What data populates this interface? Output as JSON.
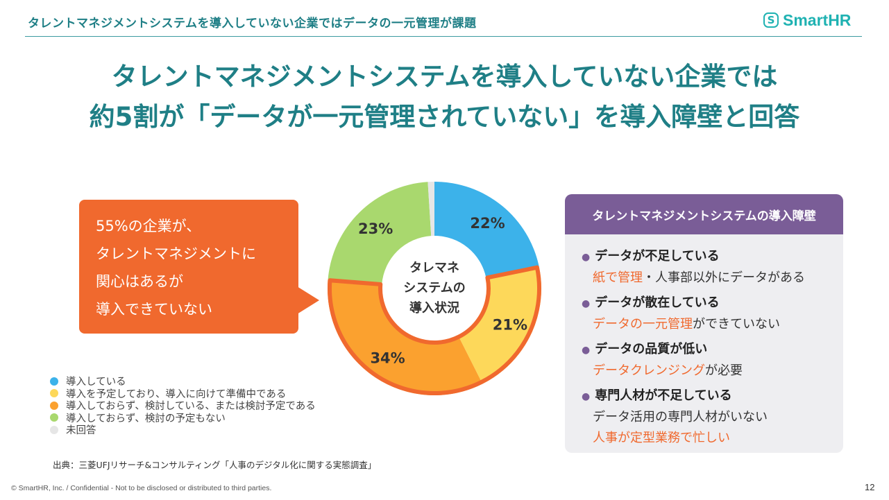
{
  "header": {
    "title": "タレントマネジメントシステムを導入していない企業ではデータの一元管理が課題",
    "logo_mark": "S",
    "logo_text": "SmartHR"
  },
  "main_title": {
    "line1": "タレントマネジメントシステムを導入していない企業では",
    "line2": "約5割が「データが一元管理されていない」を導入障壁と回答"
  },
  "callout": {
    "lines": [
      "55%の企業が、",
      "タレントマネジメントに",
      "関心はあるが",
      "導入できていない"
    ]
  },
  "chart_data": {
    "type": "pie",
    "variant": "donut",
    "center_label": [
      "タレマネ",
      "システムの",
      "導入状況"
    ],
    "slices": [
      {
        "label": "導入している",
        "value": 22,
        "display": "22%",
        "color": "#3cb2ea"
      },
      {
        "label": "導入を予定しており、導入に向けて準備中である",
        "value": 21,
        "display": "21%",
        "color": "#fdd85a"
      },
      {
        "label": "導入しておらず、検討している、または検討予定である",
        "value": 34,
        "display": "34%",
        "color": "#fba12f"
      },
      {
        "label": "導入しておらず、検討の予定もない",
        "value": 23,
        "display": "23%",
        "color": "#a9d86e"
      },
      {
        "label": "未回答",
        "value": 1,
        "display": "",
        "color": "#e6e6e6"
      }
    ],
    "highlight": {
      "slices": [
        1,
        2
      ],
      "color": "#f0692e"
    },
    "legend_position": "bottom-left"
  },
  "source": "出典：三菱UFJリサーチ&コンサルティング「人事のデジタル化に関する実態調査」",
  "panel": {
    "title": "タレントマネジメントシステムの導入障壁",
    "items": [
      {
        "title": "データが不足している",
        "detail": [
          {
            "text": "紙で管理",
            "highlight": true
          },
          {
            "text": "・人事部以外にデータがある",
            "highlight": false
          }
        ]
      },
      {
        "title": "データが散在している",
        "detail": [
          {
            "text": "データの一元管理",
            "highlight": true
          },
          {
            "text": "ができていない",
            "highlight": false
          }
        ]
      },
      {
        "title": "データの品質が低い",
        "detail": [
          {
            "text": "データクレンジング",
            "highlight": true
          },
          {
            "text": "が必要",
            "highlight": false
          }
        ]
      },
      {
        "title": "専門人材が不足している",
        "detail": [
          {
            "text": "データ活用の専門人材がいない",
            "highlight": false
          }
        ],
        "detail2": [
          {
            "text": "人事が定型業務で忙しい",
            "highlight": true
          }
        ]
      }
    ]
  },
  "footer": "© SmartHR, Inc. / Confidential - Not to be disclosed or distributed to third parties.",
  "page_number": "12"
}
